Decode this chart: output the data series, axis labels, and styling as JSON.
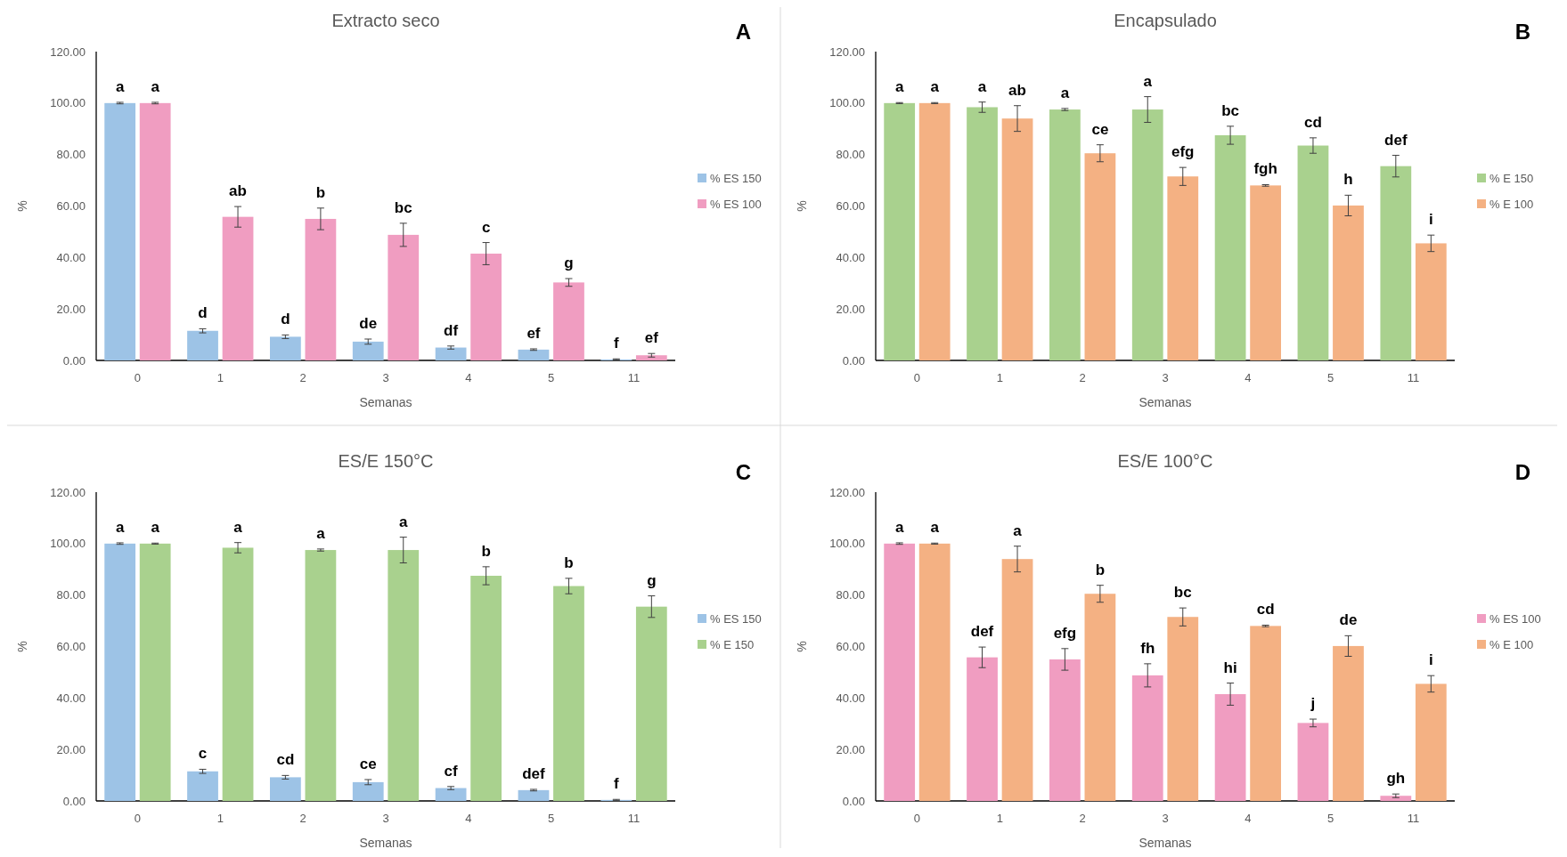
{
  "chart_data": [
    {
      "type": "bar",
      "title": "Extracto seco",
      "xlabel": "Semanas",
      "ylabel": "%",
      "annotations": [
        "A"
      ],
      "categories": [
        "0",
        "1",
        "2",
        "3",
        "4",
        "5",
        "11"
      ],
      "ylim": [
        0,
        120
      ],
      "yticks": [
        {
          "value": 0,
          "label": "0.00"
        },
        {
          "value": 20,
          "label": "20.00"
        },
        {
          "value": 40,
          "label": "40.00"
        },
        {
          "value": 60,
          "label": "60.00"
        },
        {
          "value": 80,
          "label": "80.00"
        },
        {
          "value": 100,
          "label": "100.00"
        },
        {
          "value": 120,
          "label": "120.00"
        }
      ],
      "grid": false,
      "legend": "right",
      "series": [
        {
          "name": "% ES 150",
          "color": "#9dc3e6",
          "values": [
            100,
            11.5,
            9.2,
            7.3,
            5.0,
            4.2,
            0.4
          ],
          "errors": [
            0.3,
            0.8,
            0.7,
            1.0,
            0.6,
            0.3,
            0.2
          ],
          "value_labels": [
            "a",
            "d",
            "d",
            "de",
            "df",
            "ef",
            "f"
          ]
        },
        {
          "name": "% ES 100",
          "color": "#f09dc1",
          "values": [
            100,
            55.8,
            55.0,
            48.8,
            41.5,
            30.3,
            2.0
          ],
          "errors": [
            0.3,
            4.0,
            4.2,
            4.5,
            4.3,
            1.5,
            0.7
          ],
          "value_labels": [
            "a",
            "ab",
            "b",
            "bc",
            "c",
            "g",
            "ef"
          ]
        }
      ]
    },
    {
      "type": "bar",
      "title": "Encapsulado",
      "xlabel": "Semanas",
      "ylabel": "%",
      "annotations": [
        "B"
      ],
      "categories": [
        "0",
        "1",
        "2",
        "3",
        "4",
        "5",
        "11"
      ],
      "ylim": [
        0,
        120
      ],
      "yticks": [
        {
          "value": 0,
          "label": "0.00"
        },
        {
          "value": 20,
          "label": "20.00"
        },
        {
          "value": 40,
          "label": "40.00"
        },
        {
          "value": 60,
          "label": "60.00"
        },
        {
          "value": 80,
          "label": "80.00"
        },
        {
          "value": 100,
          "label": "100.00"
        },
        {
          "value": 120,
          "label": "120.00"
        }
      ],
      "grid": false,
      "legend": "right",
      "series": [
        {
          "name": "% E 150",
          "color": "#a9d18e",
          "values": [
            100,
            98.4,
            97.5,
            97.5,
            87.5,
            83.5,
            75.5
          ],
          "errors": [
            0.2,
            2.0,
            0.4,
            5.0,
            3.5,
            3.0,
            4.2
          ],
          "value_labels": [
            "a",
            "a",
            "a",
            "a",
            "bc",
            "cd",
            "def"
          ]
        },
        {
          "name": "% E 100",
          "color": "#f4b183",
          "values": [
            100,
            94,
            80.5,
            71.5,
            68,
            60.2,
            45.5
          ],
          "errors": [
            0.2,
            5.0,
            3.3,
            3.5,
            0.3,
            4.0,
            3.2
          ],
          "value_labels": [
            "a",
            "ab",
            "ce",
            "efg",
            "fgh",
            "h",
            "i"
          ]
        }
      ]
    },
    {
      "type": "bar",
      "title": "ES/E 150°C",
      "xlabel": "Semanas",
      "ylabel": "%",
      "annotations": [
        "C"
      ],
      "categories": [
        "0",
        "1",
        "2",
        "3",
        "4",
        "5",
        "11"
      ],
      "ylim": [
        0,
        120
      ],
      "yticks": [
        {
          "value": 0,
          "label": "0.00"
        },
        {
          "value": 20,
          "label": "20.00"
        },
        {
          "value": 40,
          "label": "40.00"
        },
        {
          "value": 60,
          "label": "60.00"
        },
        {
          "value": 80,
          "label": "80.00"
        },
        {
          "value": 100,
          "label": "100.00"
        },
        {
          "value": 120,
          "label": "120.00"
        }
      ],
      "grid": false,
      "legend": "right",
      "series": [
        {
          "name": "% ES 150",
          "color": "#9dc3e6",
          "values": [
            100,
            11.5,
            9.2,
            7.3,
            5.0,
            4.2,
            0.4
          ],
          "errors": [
            0.3,
            0.8,
            0.7,
            1.0,
            0.6,
            0.3,
            0.2
          ],
          "value_labels": [
            "a",
            "c",
            "cd",
            "ce",
            "cf",
            "def",
            "f"
          ]
        },
        {
          "name": "% E 150",
          "color": "#a9d18e",
          "values": [
            100,
            98.4,
            97.5,
            97.5,
            87.5,
            83.5,
            75.5
          ],
          "errors": [
            0.2,
            2.0,
            0.4,
            5.0,
            3.5,
            3.0,
            4.2
          ],
          "value_labels": [
            "a",
            "a",
            "a",
            "a",
            "b",
            "b",
            "g"
          ]
        }
      ]
    },
    {
      "type": "bar",
      "title": "ES/E 100°C",
      "xlabel": "Semanas",
      "ylabel": "%",
      "annotations": [
        "D"
      ],
      "categories": [
        "0",
        "1",
        "2",
        "3",
        "4",
        "5",
        "11"
      ],
      "ylim": [
        0,
        120
      ],
      "yticks": [
        {
          "value": 0,
          "label": "0.00"
        },
        {
          "value": 20,
          "label": "20.00"
        },
        {
          "value": 40,
          "label": "40.00"
        },
        {
          "value": 60,
          "label": "60.00"
        },
        {
          "value": 80,
          "label": "80.00"
        },
        {
          "value": 100,
          "label": "100.00"
        },
        {
          "value": 120,
          "label": "120.00"
        }
      ],
      "grid": false,
      "legend": "right",
      "series": [
        {
          "name": "% ES 100",
          "color": "#f09dc1",
          "values": [
            100,
            55.8,
            55.0,
            48.8,
            41.5,
            30.3,
            2.0
          ],
          "errors": [
            0.3,
            4.0,
            4.2,
            4.5,
            4.3,
            1.5,
            0.7
          ],
          "value_labels": [
            "a",
            "def",
            "efg",
            "fh",
            "hi",
            "j",
            "gh"
          ]
        },
        {
          "name": "% E 100",
          "color": "#f4b183",
          "values": [
            100,
            94,
            80.5,
            71.5,
            68,
            60.2,
            45.5
          ],
          "errors": [
            0.2,
            5.0,
            3.3,
            3.5,
            0.3,
            4.0,
            3.2
          ],
          "value_labels": [
            "a",
            "a",
            "b",
            "bc",
            "cd",
            "de",
            "i"
          ]
        }
      ]
    }
  ]
}
